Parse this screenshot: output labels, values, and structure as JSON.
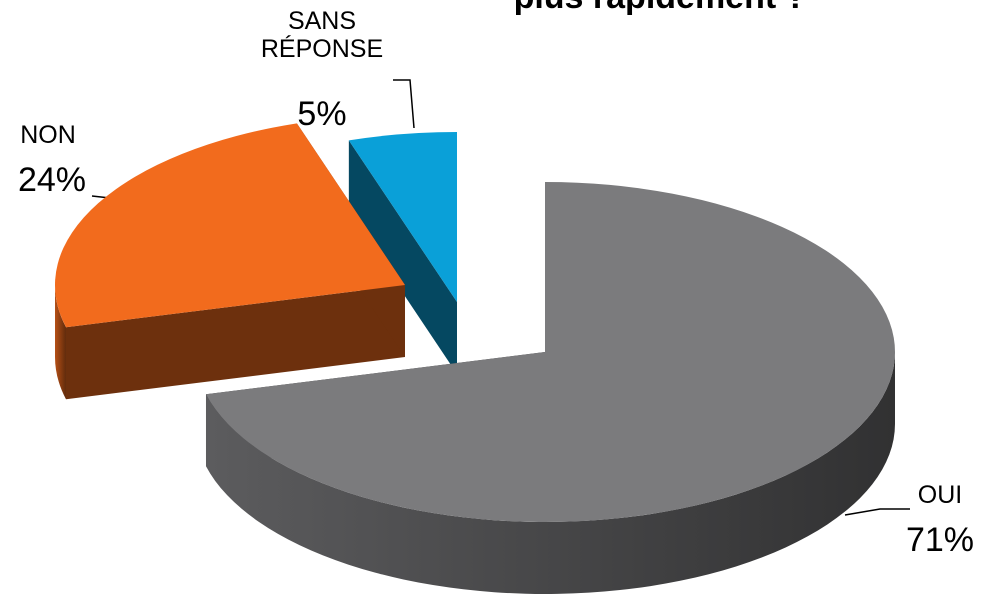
{
  "chart_data": {
    "type": "pie3d",
    "title": "plus rapidement ?",
    "categories": [
      "OUI",
      "NON",
      "SANS RÉPONSE"
    ],
    "values": [
      71,
      24,
      5
    ],
    "value_labels": [
      "71%",
      "24%",
      "5%"
    ],
    "colors": [
      "#7b7b7d",
      "#f26b1d",
      "#0aa0d8"
    ]
  }
}
